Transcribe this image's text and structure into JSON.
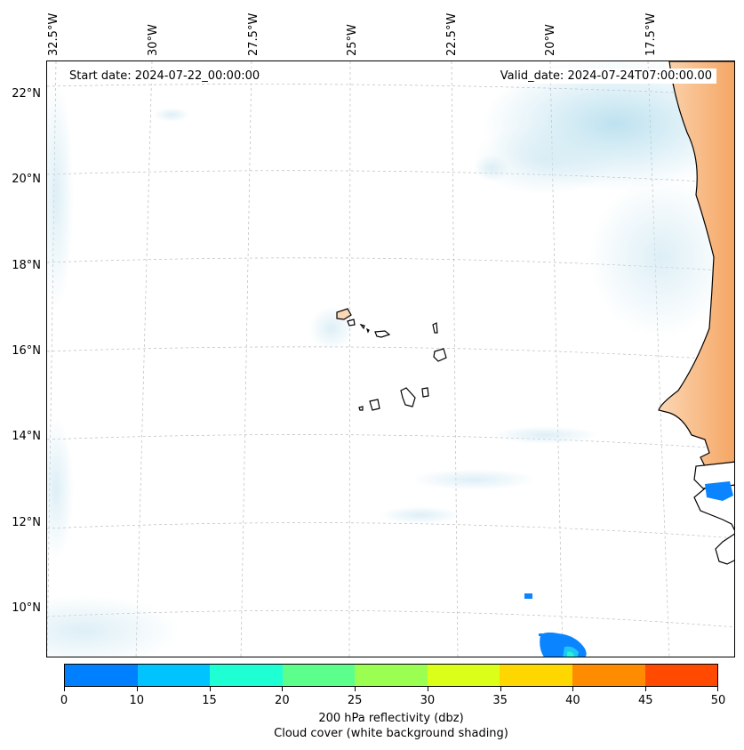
{
  "map": {
    "start_date": "Start date: 2024-07-22_00:00:00",
    "valid_date": "Valid_date: 2024-07-24T07:00:00.00",
    "lon_labels": [
      "32.5°W",
      "30°W",
      "27.5°W",
      "25°W",
      "22.5°W",
      "20°W",
      "17.5°W"
    ],
    "lat_labels": [
      "22°N",
      "20°N",
      "18°N",
      "16°N",
      "14°N",
      "12°N",
      "10°N"
    ],
    "land_color": "#f5a562",
    "cloud_color": "#a8d8ea",
    "refl_color": "#0a84ff",
    "refl_color_2": "#1ec6f5",
    "refl_color_3": "#2af5d2"
  },
  "colorbar": {
    "ticks": [
      "0",
      "10",
      "15",
      "20",
      "25",
      "30",
      "35",
      "40",
      "45",
      "50"
    ],
    "colors": [
      "#007fff",
      "#00c3ff",
      "#1effd4",
      "#5cff8c",
      "#9bff52",
      "#dcff1a",
      "#ffd700",
      "#ff8b00",
      "#ff4a00"
    ],
    "title_line1": "200 hPa reflectivity (dbz)",
    "title_line2": "Cloud cover (white background shading)"
  }
}
